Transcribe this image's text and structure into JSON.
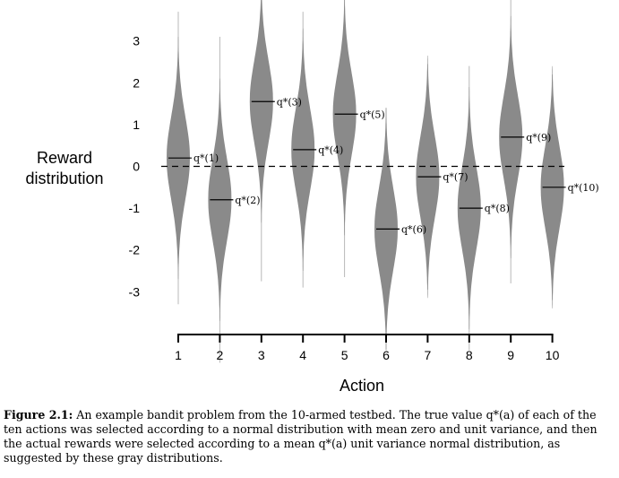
{
  "chart_data": {
    "type": "violin",
    "xlabel": "Action",
    "ylabel": "Reward distribution",
    "ylabel_lines": [
      "Reward",
      "distribution"
    ],
    "categories": [
      "1",
      "2",
      "3",
      "4",
      "5",
      "6",
      "7",
      "8",
      "9",
      "10"
    ],
    "yticks": [
      "3",
      "2",
      "1",
      "0",
      "-1",
      "-2",
      "-3"
    ],
    "ytick_values": [
      3,
      2,
      1,
      0,
      -1,
      -2,
      -3
    ],
    "ylim": [
      -4,
      4
    ],
    "reference_line": {
      "value": 0,
      "style": "dashed"
    },
    "means": [
      0.2,
      -0.8,
      1.55,
      0.4,
      1.25,
      -1.5,
      -0.25,
      -1.0,
      0.7,
      -0.5
    ],
    "mean_labels": [
      "q*(1)",
      "q*(2)",
      "q*(3)",
      "q*(4)",
      "q*(5)",
      "q*(6)",
      "q*(7)",
      "q*(8)",
      "q*(9)",
      "q*(10)"
    ],
    "spread_sd": 1,
    "fill_color": "#8a8a8a",
    "grid": false
  },
  "caption": {
    "label": "Figure 2.1:",
    "text": "An example bandit problem from the 10-armed testbed. The true value q*(a) of each of the ten actions was selected according to a normal distribution with mean zero and unit variance, and then the actual rewards were selected according to a mean q*(a) unit variance normal distribution, as suggested by these gray distributions."
  }
}
